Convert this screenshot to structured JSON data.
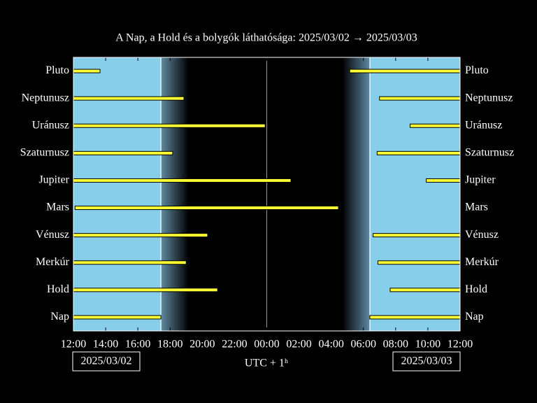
{
  "chart_data": {
    "type": "visibility",
    "title": "A Nap, a Hold és a bolygók láthatósága: 2025/03/02 → 2025/03/03",
    "xlabel": "UTC + 1ʰ",
    "date_start": "2025/03/02",
    "date_end": "2025/03/03",
    "xlim": [
      0,
      24
    ],
    "xticks": [
      {
        "value": 0,
        "label": "12:00"
      },
      {
        "value": 2,
        "label": "14:00"
      },
      {
        "value": 4,
        "label": "16:00"
      },
      {
        "value": 6,
        "label": "18:00"
      },
      {
        "value": 8,
        "label": "20:00"
      },
      {
        "value": 10,
        "label": "22:00"
      },
      {
        "value": 12,
        "label": "00:00"
      },
      {
        "value": 14,
        "label": "02:00"
      },
      {
        "value": 16,
        "label": "04:00"
      },
      {
        "value": 18,
        "label": "06:00"
      },
      {
        "value": 20,
        "label": "08:00"
      },
      {
        "value": 22,
        "label": "10:00"
      },
      {
        "value": 24,
        "label": "12:00"
      }
    ],
    "daylight": [
      [
        0,
        5.43
      ],
      [
        18.4,
        24
      ]
    ],
    "twilight": [
      [
        5.43,
        7.15
      ],
      [
        16.7,
        18.4
      ]
    ],
    "midnight_line": 12,
    "day_color": "#87ceeb",
    "bar_color": "#ffff33",
    "objects": [
      {
        "name": "Pluto",
        "intervals": [
          [
            0,
            1.65
          ],
          [
            17.15,
            24
          ]
        ]
      },
      {
        "name": "Neptunusz",
        "intervals": [
          [
            0,
            6.86
          ],
          [
            19.0,
            24
          ]
        ]
      },
      {
        "name": "Uránusz",
        "intervals": [
          [
            0,
            11.9
          ],
          [
            20.9,
            24
          ]
        ]
      },
      {
        "name": "Szaturnusz",
        "intervals": [
          [
            0,
            6.16
          ],
          [
            18.85,
            24
          ]
        ]
      },
      {
        "name": "Jupiter",
        "intervals": [
          [
            0,
            13.5
          ],
          [
            21.9,
            24
          ]
        ]
      },
      {
        "name": "Mars",
        "intervals": [
          [
            0.1,
            16.45
          ]
        ]
      },
      {
        "name": "Vénusz",
        "intervals": [
          [
            0,
            8.33
          ],
          [
            18.6,
            24
          ]
        ]
      },
      {
        "name": "Merkúr",
        "intervals": [
          [
            0,
            7.0
          ],
          [
            18.9,
            24
          ]
        ]
      },
      {
        "name": "Hold",
        "intervals": [
          [
            0,
            8.95
          ],
          [
            19.66,
            24
          ]
        ]
      },
      {
        "name": "Nap",
        "intervals": [
          [
            0,
            5.43
          ],
          [
            18.4,
            24
          ]
        ]
      }
    ]
  }
}
